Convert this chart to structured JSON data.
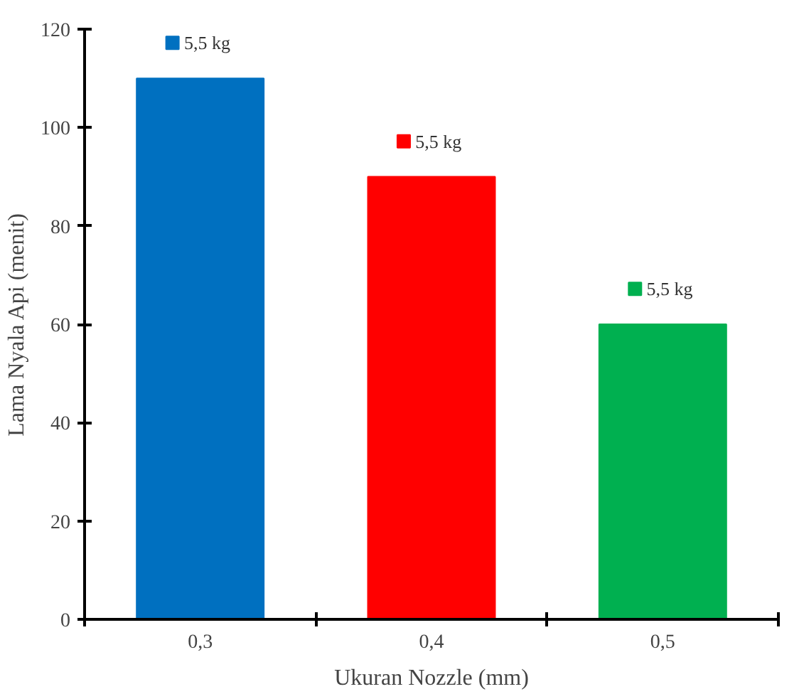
{
  "chart_data": {
    "type": "bar",
    "xlabel": "Ukuran Nozzle (mm)",
    "ylabel": "Lama Nyala Api (menit)",
    "categories": [
      "0,3",
      "0,4",
      "0,5"
    ],
    "series": [
      {
        "name": "5,5 kg",
        "color": "#0070c0",
        "values": [
          110,
          null,
          null
        ]
      },
      {
        "name": "5,5 kg",
        "color": "#ff0000",
        "values": [
          null,
          90,
          null
        ]
      },
      {
        "name": "5,5 kg",
        "color": "#00b050",
        "values": [
          null,
          null,
          60
        ]
      }
    ],
    "ylim": [
      0,
      120
    ],
    "yticks": [
      0,
      20,
      40,
      60,
      80,
      100,
      120
    ],
    "grid": false
  }
}
